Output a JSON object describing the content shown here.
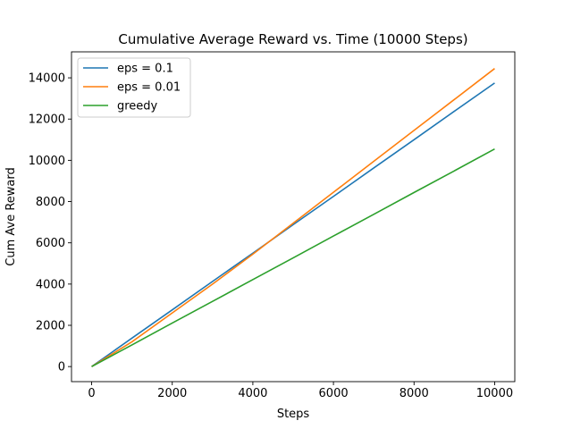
{
  "chart_data": {
    "type": "line",
    "title": "Cumulative Average Reward vs. Time (10000 Steps)",
    "xlabel": "Steps",
    "ylabel": "Cum Ave Reward",
    "xlim": [
      -500,
      10500
    ],
    "ylim": [
      -730,
      15260
    ],
    "x_ticks": [
      0,
      2000,
      4000,
      6000,
      8000,
      10000
    ],
    "y_ticks": [
      0,
      2000,
      4000,
      6000,
      8000,
      10000,
      12000,
      14000
    ],
    "grid": false,
    "legend_position": "top-left",
    "series": [
      {
        "name": "eps = 0.1",
        "color": "#1f77b4",
        "x": [
          0,
          1000,
          2000,
          3000,
          4000,
          5000,
          6000,
          7000,
          8000,
          9000,
          10000
        ],
        "y": [
          0,
          1380,
          2750,
          4130,
          5500,
          6880,
          8250,
          9630,
          11000,
          12380,
          13750
        ]
      },
      {
        "name": "eps = 0.01",
        "color": "#ff7f0e",
        "x": [
          0,
          1000,
          2000,
          3000,
          4000,
          5000,
          6000,
          7000,
          8000,
          9000,
          10000
        ],
        "y": [
          0,
          1200,
          2600,
          4000,
          5450,
          6950,
          8450,
          9950,
          11450,
          12950,
          14450
        ]
      },
      {
        "name": "greedy",
        "color": "#2ca02c",
        "x": [
          0,
          1000,
          2000,
          3000,
          4000,
          5000,
          6000,
          7000,
          8000,
          9000,
          10000
        ],
        "y": [
          0,
          1050,
          2110,
          3160,
          4220,
          5270,
          6330,
          7380,
          8440,
          9490,
          10550
        ]
      }
    ]
  }
}
